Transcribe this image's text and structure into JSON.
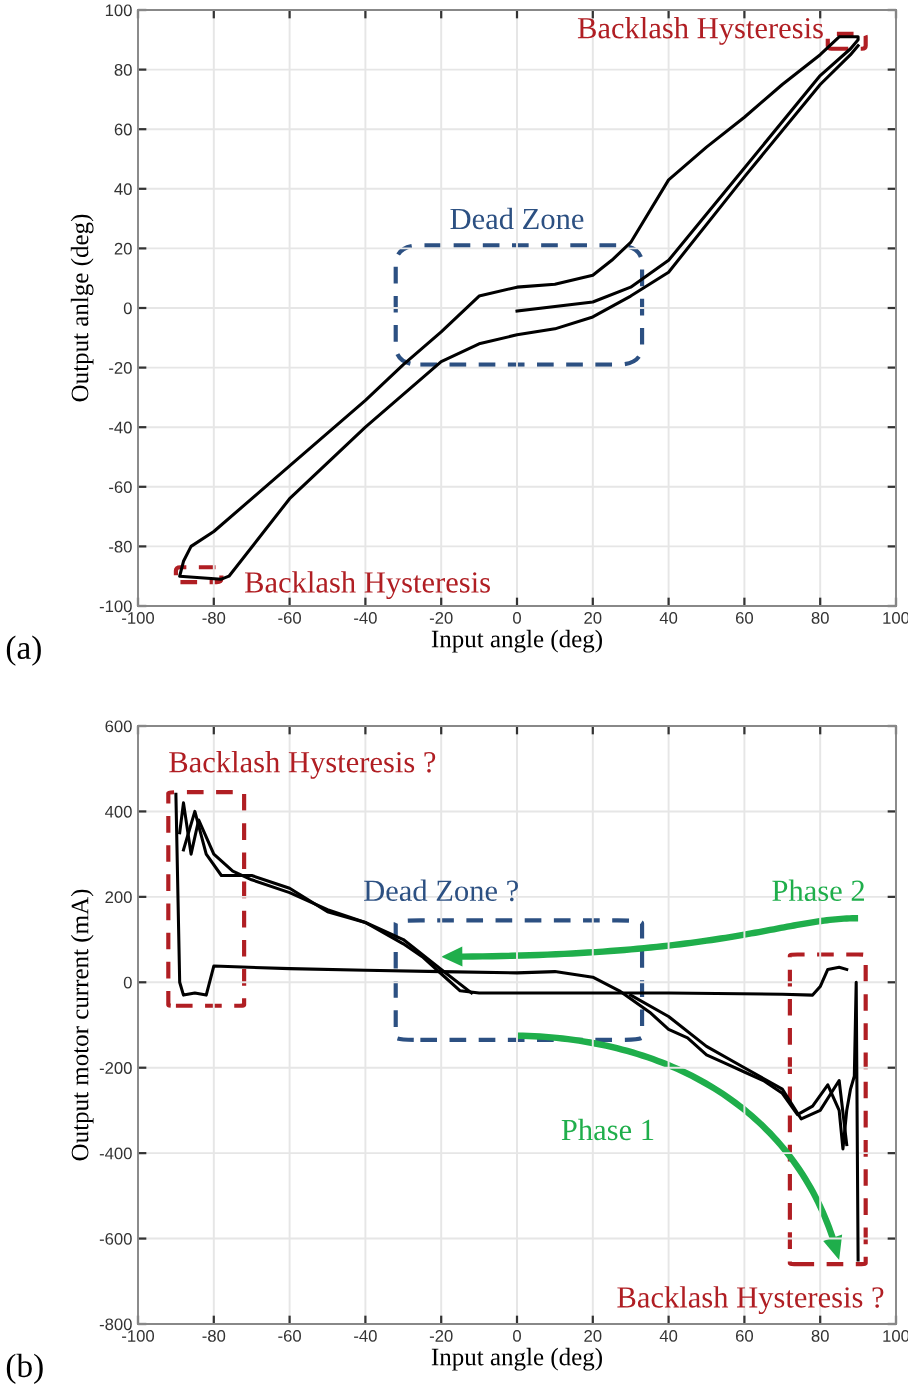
{
  "chart_data": [
    {
      "type": "line",
      "xlabel": "Input angle (deg)",
      "ylabel": "Output anlge (deg)",
      "xlim": [
        -100,
        100
      ],
      "xticks": [
        -100,
        -80,
        -60,
        -40,
        -20,
        0,
        20,
        40,
        60,
        80,
        100
      ],
      "ylim": [
        -100,
        100
      ],
      "yticks": [
        -100,
        -80,
        -60,
        -40,
        -20,
        0,
        20,
        40,
        60,
        80,
        100
      ],
      "grid": true,
      "line_style": "solid",
      "series": [
        {
          "color": "#000000",
          "x": [
            0,
            20,
            30,
            40,
            60,
            80,
            88,
            90,
            90,
            85,
            80,
            70,
            60,
            50,
            40,
            30,
            25,
            20,
            10,
            0,
            -10,
            -20,
            -30,
            -40,
            -60,
            -80,
            -86,
            -88,
            -89,
            -78,
            -76,
            -60,
            -40,
            -20,
            -10,
            0,
            10,
            20,
            30,
            40,
            60,
            80,
            88,
            90
          ],
          "values": [
            -1,
            2,
            7,
            16,
            47,
            78,
            87,
            90,
            91,
            91,
            85,
            75,
            64,
            54,
            43,
            22,
            16,
            11,
            8,
            7,
            4,
            -8,
            -19,
            -31,
            -53,
            -75,
            -80,
            -85,
            -90,
            -91,
            -90,
            -64,
            -40,
            -18,
            -12,
            -9,
            -7,
            -3,
            4,
            12,
            44,
            75,
            85,
            88
          ]
        }
      ],
      "annotations": [
        "Backlash Hysteresis",
        "Dead Zone",
        "Backlash Hysteresis",
        "(a)"
      ]
    },
    {
      "type": "line",
      "xlabel": "Input angle (deg)",
      "ylabel": "Output motor current (mA)",
      "xlim": [
        -100,
        100
      ],
      "xticks": [
        -100,
        -80,
        -60,
        -40,
        -20,
        0,
        20,
        40,
        60,
        80,
        100
      ],
      "ylim": [
        -800,
        600
      ],
      "yticks": [
        -800,
        -600,
        -400,
        -200,
        0,
        200,
        400,
        600
      ],
      "grid": true,
      "line_style": "solid",
      "series": [
        {
          "color": "#000000",
          "x": [
            -90,
            -89,
            -88,
            -85,
            -82,
            -80,
            -60,
            -40,
            -20,
            0,
            10,
            20,
            27,
            35,
            40,
            45,
            50,
            55,
            60,
            65,
            70,
            74,
            78,
            82,
            85,
            86,
            87,
            88,
            89,
            89.5,
            90
          ],
          "values": [
            440,
            0,
            -30,
            -25,
            -30,
            38,
            32,
            28,
            25,
            22,
            25,
            12,
            -20,
            -70,
            -110,
            -130,
            -170,
            -190,
            -210,
            -230,
            -260,
            -310,
            -290,
            -240,
            -300,
            -390,
            -300,
            -250,
            -220,
            0,
            -650
          ]
        },
        {
          "color": "#000000",
          "x": [
            -89,
            -88,
            -86,
            -84,
            -80,
            -75,
            -70,
            -60,
            -50,
            -40,
            -30,
            -25,
            -20,
            -15,
            -10,
            20,
            40,
            70,
            78,
            80,
            82,
            85,
            87
          ],
          "values": [
            350,
            420,
            300,
            380,
            300,
            260,
            240,
            210,
            170,
            140,
            90,
            60,
            20,
            -20,
            -25,
            -25,
            -25,
            -28,
            -30,
            -10,
            30,
            35,
            30
          ]
        },
        {
          "color": "#000000",
          "x": [
            -88,
            -85,
            -82,
            -78,
            -70,
            -60,
            -50,
            -40,
            -30,
            -20,
            -12
          ],
          "values": [
            310,
            400,
            300,
            250,
            250,
            220,
            165,
            140,
            100,
            30,
            -25
          ]
        },
        {
          "color": "#000000",
          "x": [
            30,
            40,
            50,
            60,
            70,
            75,
            80,
            85,
            87
          ],
          "values": [
            -30,
            -80,
            -150,
            -200,
            -250,
            -320,
            -300,
            -230,
            -380
          ]
        }
      ],
      "annotations": [
        "Backlash Hysteresis ?",
        "Dead Zone ?",
        "Phase 2",
        "Phase 1",
        "Backlash Hysteresis ?",
        "(b)"
      ]
    }
  ]
}
